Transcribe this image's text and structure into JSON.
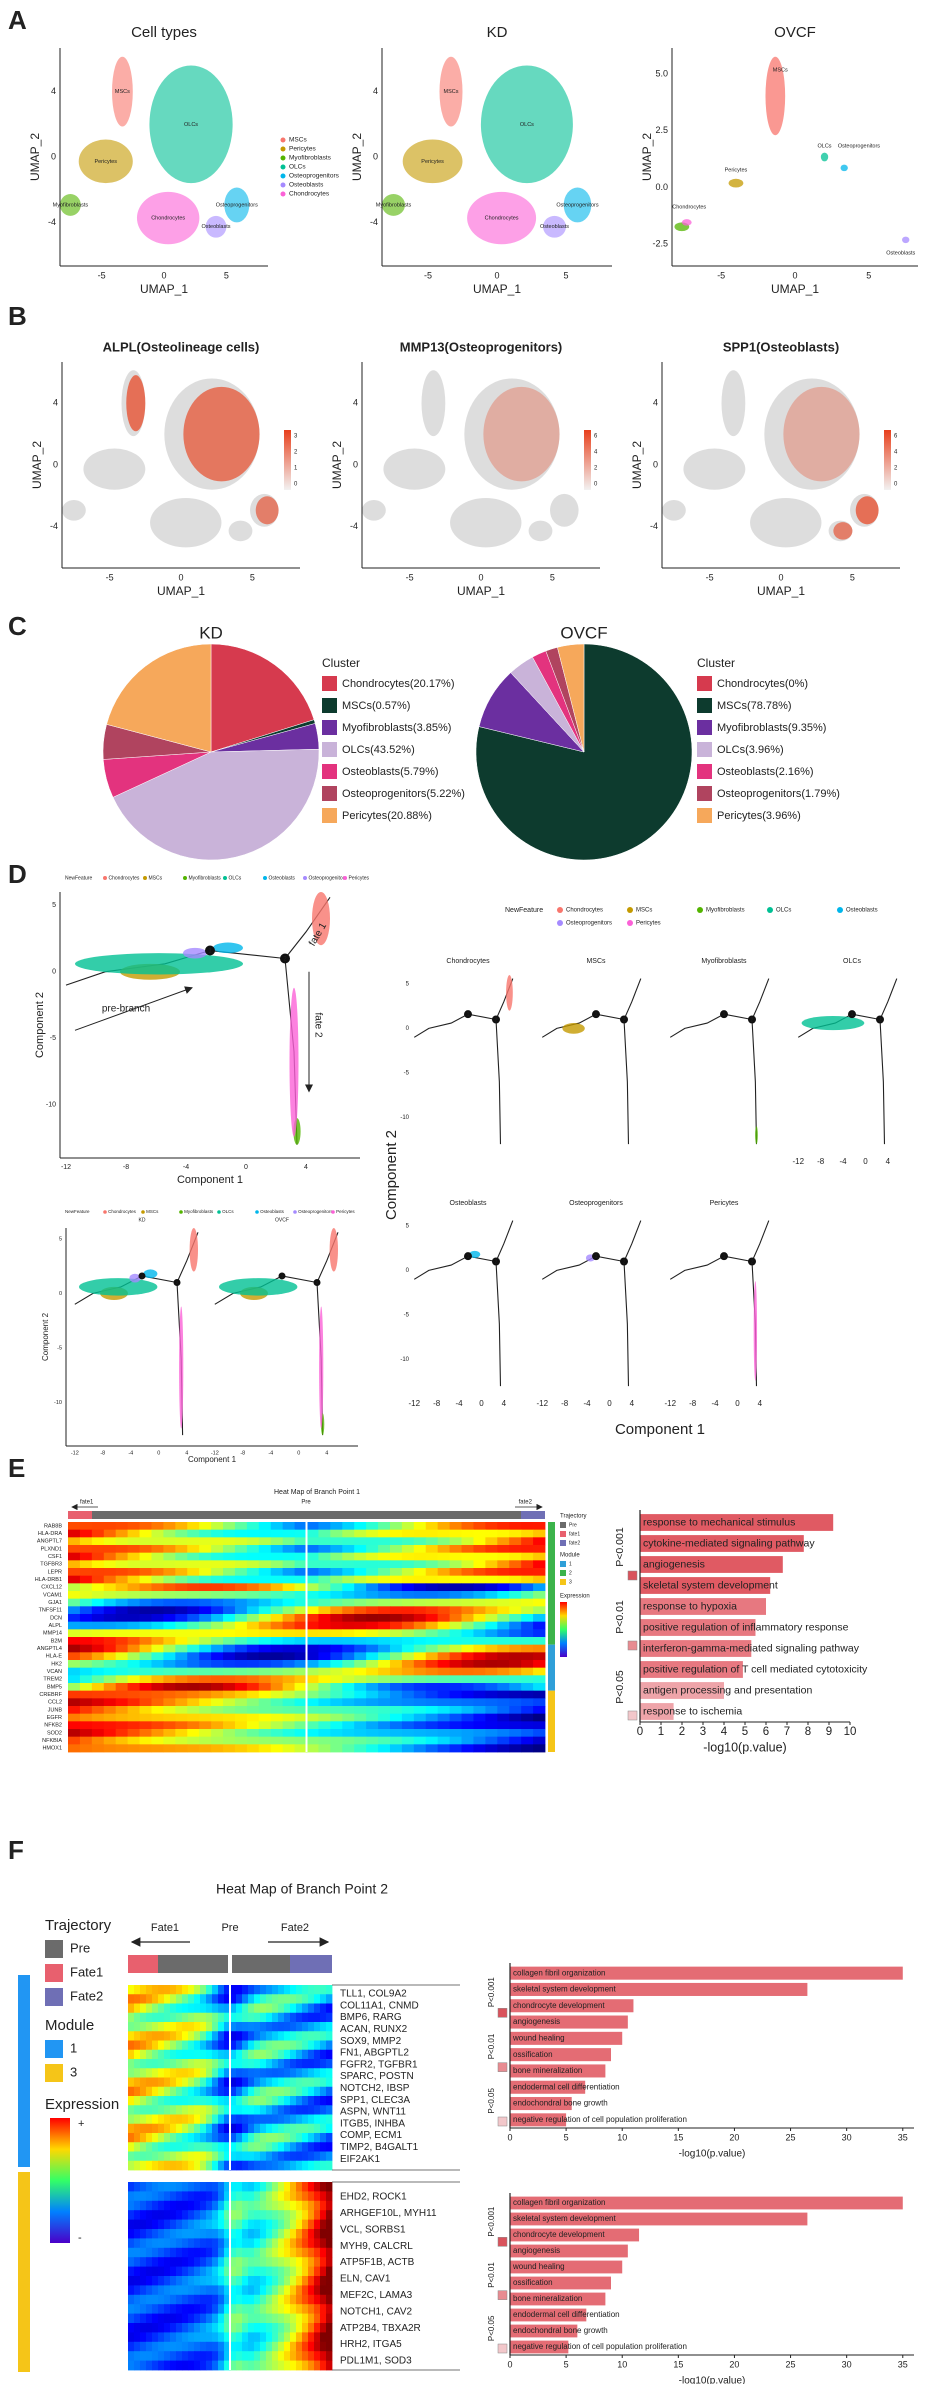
{
  "panel_labels": [
    "A",
    "B",
    "C",
    "D",
    "E",
    "F"
  ],
  "umap": {
    "titles": [
      "Cell types",
      "KD",
      "OVCF"
    ],
    "x_label": "UMAP_1",
    "y_label": "UMAP_2",
    "xticks": [
      "-5",
      "0",
      "5"
    ],
    "yticks": [
      "4",
      "0",
      "-4"
    ],
    "ovcf_xticks": [
      "-5",
      "0",
      "5"
    ],
    "ovcf_yticks": [
      "5.0",
      "2.5",
      "0.0",
      "-2.5"
    ],
    "legend": [
      "MSCs",
      "Pericytes",
      "Myofibroblasts",
      "OLCs",
      "Osteoprogenitors",
      "Osteoblasts",
      "Chondrocytes"
    ],
    "legend_colors": [
      "#f8766d",
      "#c49a00",
      "#53b400",
      "#00c094",
      "#00b6eb",
      "#a58aff",
      "#fb61d7"
    ]
  },
  "markers": {
    "titles": [
      "ALPL(Osteolineage cells)",
      "MMP13(Osteoprogenitors)",
      "SPP1(Osteoblasts)"
    ],
    "colorbar_ticks": [
      [
        "3",
        "2",
        "1",
        "0"
      ],
      [
        "6",
        "4",
        "2",
        "0"
      ],
      [
        "6",
        "4",
        "2",
        "0"
      ]
    ]
  },
  "trajectory": {
    "legend_title": "NewFeature",
    "types": [
      "Chondrocytes",
      "MSCs",
      "Myofibroblasts",
      "OLCs",
      "Osteoblasts",
      "Osteoprogenitors",
      "Pericytes"
    ],
    "type_colors": [
      "#f8766d",
      "#c49a00",
      "#53b400",
      "#00c094",
      "#00b6eb",
      "#a58aff",
      "#fb61d7"
    ],
    "annotations": [
      "pre-branch",
      "fate 1",
      "fate 2"
    ],
    "node_labels": [
      "1",
      "2"
    ],
    "x_label": "Component 1",
    "y_label": "Component 2",
    "xticks": [
      "-12",
      "-8",
      "-4",
      "0",
      "4"
    ],
    "yticks": [
      "5",
      "0",
      "-5",
      "-10"
    ],
    "group_titles": [
      "KD",
      "OVCF"
    ]
  },
  "heatmap_e": {
    "title": "Heat Map of Branch Point 1",
    "direction_labels": [
      "fate1",
      "Pre",
      "fate2"
    ],
    "genes": [
      "RAB8B",
      "HLA-DRA",
      "ANGPTL7",
      "PLXND1",
      "CSF1",
      "TGFBR3",
      "LEPR",
      "HLA-DRB1",
      "CXCL12",
      "VCAM1",
      "GJA1",
      "TNFSF11",
      "DCN",
      "ALPL",
      "MMP14",
      "B2M",
      "ANGPTL4",
      "HLA-E",
      "HK2",
      "VCAN",
      "TREM2",
      "BMP5",
      "CREBRF",
      "CCL2",
      "JUNB",
      "EGFR",
      "NFKB2",
      "SOD2",
      "NFKBIA",
      "HMOX1"
    ],
    "trajectory_title": "Trajectory",
    "trajectory": [
      "Pre",
      "fate1",
      "fate2"
    ],
    "trajectory_colors": [
      "#6b6b6b",
      "#e8606e",
      "#6f6fb5"
    ],
    "module_title": "Module",
    "modules": [
      "1",
      "2",
      "3"
    ],
    "module_colors": [
      "#2f9fd8",
      "#3cb44b",
      "#f5c518"
    ],
    "expression_title": "Expression"
  },
  "heatmap_f": {
    "title": "Heat Map of Branch Point 2",
    "direction_labels": [
      "Fate1",
      "Pre",
      "Fate2"
    ],
    "trajectory_title": "Trajectory",
    "trajectory": [
      "Pre",
      "Fate1",
      "Fate2"
    ],
    "trajectory_colors": [
      "#6b6b6b",
      "#e8606e",
      "#6f6fb5"
    ],
    "module_title": "Module",
    "modules": [
      "1",
      "3"
    ],
    "module_colors": [
      "#2196f3",
      "#f5c518"
    ],
    "expression_title": "Expression",
    "expression_ends": [
      "+",
      "-"
    ],
    "module1_genes": [
      "TLL1, COL9A2",
      "COL11A1, CNMD",
      "BMP6, RARG",
      "ACAN, RUNX2",
      "SOX9, MMP2",
      "FN1, ABGPTL2",
      "FGFR2, TGFBR1",
      "SPARC, POSTN",
      "NOTCH2, IBSP",
      "SPP1, CLEC3A",
      "ASPN, WNT11",
      "ITGB5, INHBA",
      "COMP, ECM1",
      "TIMP2, B4GALT1",
      "EIF2AK1"
    ],
    "module3_genes": [
      "EHD2, ROCK1",
      "ARHGEF10L, MYH11",
      "VCL, SORBS1",
      "MYH9, CALCRL",
      "ATP5F1B, ACTB",
      "ELN, CAV1",
      "MEF2C, LAMA3",
      "NOTCH1, CAV2",
      "ATP2B4, TBXA2R",
      "HRH2, ITGA5",
      "PDL1M1, SOD3"
    ]
  },
  "chart_data": [
    {
      "type": "pie",
      "title": "KD",
      "legend_title": "Cluster",
      "categories": [
        "Chondrocytes(20.17%)",
        "MSCs(0.57%)",
        "Myofibroblasts(3.85%)",
        "OLCs(43.52%)",
        "Osteoblasts(5.79%)",
        "Osteoprogenitors(5.22%)",
        "Pericytes(20.88%)"
      ],
      "values": [
        20.17,
        0.57,
        3.85,
        43.52,
        5.79,
        5.22,
        20.88
      ],
      "colors": [
        "#d63a4e",
        "#0d3b2e",
        "#6b2fa0",
        "#c9b3d9",
        "#e3337e",
        "#b0445f",
        "#f6a85b"
      ]
    },
    {
      "type": "pie",
      "title": "OVCF",
      "legend_title": "Cluster",
      "categories": [
        "Chondrocytes(0%)",
        "MSCs(78.78%)",
        "Myofibroblasts(9.35%)",
        "OLCs(3.96%)",
        "Osteoblasts(2.16%)",
        "Osteoprogenitors(1.79%)",
        "Pericytes(3.96%)"
      ],
      "values": [
        0,
        78.78,
        9.35,
        3.96,
        2.16,
        1.79,
        3.96
      ],
      "colors": [
        "#d63a4e",
        "#0d3b2e",
        "#6b2fa0",
        "#c9b3d9",
        "#e3337e",
        "#b0445f",
        "#f6a85b"
      ]
    },
    {
      "type": "bar",
      "orientation": "horizontal",
      "categories": [
        "response to mechanical stimulus",
        "cytokine-mediated signaling pathway",
        "angiogenesis",
        "skeletal system development",
        "response to hypoxia",
        "positive regulation of inflammatory response",
        "interferon-gamma-mediated signaling pathway",
        "positive regulation of T cell mediated cytotoxicity",
        "antigen processing and presentation",
        "response to ischemia"
      ],
      "values": [
        9.2,
        7.8,
        6.8,
        6.2,
        6.0,
        5.5,
        5.3,
        4.9,
        4.0,
        1.6
      ],
      "colors": [
        "#e05a63",
        "#e05a63",
        "#e05a63",
        "#e05a63",
        "#e77880",
        "#e77880",
        "#e77880",
        "#e77880",
        "#eea4a9",
        "#eea4a9"
      ],
      "xlim": [
        0,
        10
      ],
      "xticks": [
        0,
        1,
        2,
        3,
        4,
        5,
        6,
        7,
        8,
        9,
        10
      ],
      "x_label": "-log10(p.value)",
      "significance_labels": [
        "P<0.001",
        "P<0.01",
        "P<0.05"
      ],
      "significance_colors": [
        "#d9535c",
        "#e88b91",
        "#f2c7ca"
      ]
    },
    {
      "type": "bar",
      "orientation": "horizontal",
      "categories": [
        "collagen fibril organization",
        "skeletal system development",
        "chondrocyte development",
        "angiogenesis",
        "wound healing",
        "ossification",
        "bone mineralization",
        "endodermal cell differentiation",
        "endochondral bone growth",
        "negative regulation of cell population proliferation"
      ],
      "values": [
        35,
        26.5,
        11,
        10.5,
        10,
        9,
        8.5,
        6.7,
        5.5,
        5
      ],
      "colors": [
        "#e46c74",
        "#e46c74",
        "#e46c74",
        "#e46c74",
        "#e46c74",
        "#e46c74",
        "#e46c74",
        "#e46c74",
        "#e46c74",
        "#e46c74"
      ],
      "xlim": [
        0,
        36
      ],
      "xticks": [
        0,
        5,
        10,
        15,
        20,
        25,
        30,
        35
      ],
      "x_label": "-log10(p.value)",
      "significance_labels": [
        "P<0.001",
        "P<0.01",
        "P<0.05"
      ],
      "significance_colors": [
        "#d9535c",
        "#e88b91",
        "#f2c7ca"
      ]
    },
    {
      "type": "bar",
      "orientation": "horizontal",
      "categories": [
        "collagen fibril organization",
        "skeletal system development",
        "chondrocyte development",
        "angiogenesis",
        "wound healing",
        "ossification",
        "bone mineralization",
        "endodermal cell differentiation",
        "endochondral bone growth",
        "negative regulation of cell population proliferation"
      ],
      "values": [
        35,
        26.5,
        11.5,
        10.5,
        10,
        9,
        8.5,
        6.8,
        6,
        5.2
      ],
      "colors": [
        "#e46c74",
        "#e46c74",
        "#e46c74",
        "#e46c74",
        "#e46c74",
        "#e46c74",
        "#e46c74",
        "#e46c74",
        "#e46c74",
        "#e46c74"
      ],
      "xlim": [
        0,
        36
      ],
      "xticks": [
        0,
        5,
        10,
        15,
        20,
        25,
        30,
        35
      ],
      "x_label": "-log10(p.value)",
      "significance_labels": [
        "P<0.001",
        "P<0.01",
        "P<0.05"
      ],
      "significance_colors": [
        "#d9535c",
        "#e88b91",
        "#f2c7ca"
      ]
    }
  ]
}
